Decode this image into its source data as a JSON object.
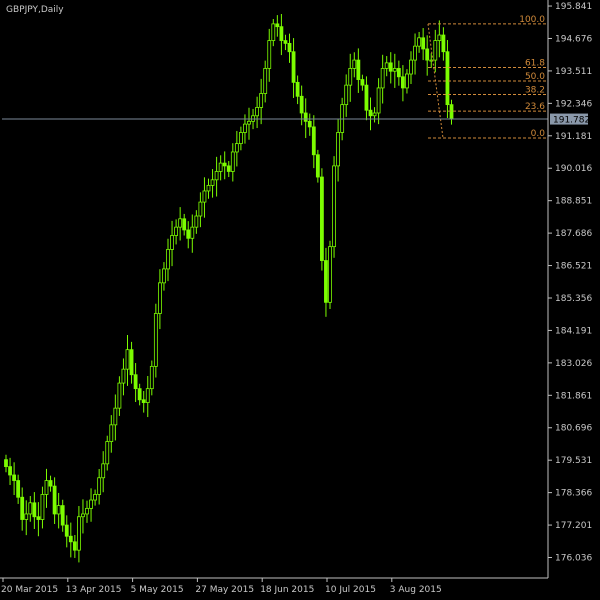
{
  "chart_data": {
    "type": "candlestick",
    "title": "GBPJPY,Daily",
    "colors": {
      "background": "#000000",
      "candle": "#7CFC00",
      "axis": "#c0c0c0",
      "price_line": "#7c8a9a",
      "fib": "#d08a3a",
      "price_tag": "#8a98aa"
    },
    "y_axis": {
      "min": 175.3,
      "max": 195.95,
      "ticks": [
        "195.841",
        "194.676",
        "193.511",
        "192.346",
        "191.181",
        "190.016",
        "188.851",
        "187.686",
        "186.521",
        "185.356",
        "184.191",
        "183.026",
        "181.861",
        "180.696",
        "179.531",
        "178.366",
        "177.201",
        "176.036"
      ]
    },
    "x_axis": {
      "labels": [
        {
          "label": "20 Mar 2015",
          "index": 0
        },
        {
          "label": "13 Apr 2015",
          "index": 16
        },
        {
          "label": "5 May 2015",
          "index": 32
        },
        {
          "label": "27 May 2015",
          "index": 48
        },
        {
          "label": "18 Jun 2015",
          "index": 64
        },
        {
          "label": "10 Jul 2015",
          "index": 80
        },
        {
          "label": "3 Aug 2015",
          "index": 96
        }
      ]
    },
    "current_price": "191.782",
    "fibonacci": {
      "high": 195.2,
      "low": 191.1,
      "levels": [
        {
          "label": "100.0",
          "ratio": 1.0
        },
        {
          "label": "61.8",
          "ratio": 0.618
        },
        {
          "label": "50.0",
          "ratio": 0.5
        },
        {
          "label": "38.2",
          "ratio": 0.382
        },
        {
          "label": "23.6",
          "ratio": 0.236
        },
        {
          "label": "0.0",
          "ratio": 0.0
        }
      ]
    },
    "closes": [
      179.3,
      179.0,
      178.8,
      178.2,
      177.4,
      177.6,
      178.0,
      177.5,
      177.4,
      178.3,
      178.8,
      178.6,
      177.6,
      177.9,
      177.2,
      176.8,
      176.6,
      176.3,
      177.5,
      177.6,
      177.8,
      178.1,
      178.3,
      178.9,
      179.4,
      180.2,
      180.8,
      181.4,
      182.3,
      182.8,
      183.5,
      182.6,
      182.1,
      181.7,
      181.6,
      182.1,
      182.9,
      184.8,
      185.9,
      186.4,
      187.1,
      187.6,
      187.9,
      188.2,
      187.8,
      187.5,
      187.9,
      188.3,
      188.8,
      189.2,
      189.4,
      189.6,
      189.9,
      190.2,
      190.1,
      189.9,
      190.6,
      190.9,
      191.3,
      191.6,
      191.7,
      191.9,
      192.2,
      192.7,
      193.6,
      194.6,
      195.2,
      195.1,
      194.6,
      194.5,
      194.2,
      193.1,
      192.6,
      192.0,
      191.7,
      191.5,
      190.5,
      189.7,
      186.7,
      185.2,
      187.2,
      190.1,
      191.3,
      192.3,
      193.0,
      193.6,
      193.9,
      193.2,
      193.0,
      192.1,
      191.9,
      192.0,
      192.9,
      193.6,
      193.8,
      193.5,
      193.6,
      193.3,
      192.9,
      193.4,
      193.9,
      194.4,
      194.7,
      194.3,
      193.9,
      193.9,
      194.6,
      194.8,
      194.2,
      192.3,
      191.78
    ]
  }
}
